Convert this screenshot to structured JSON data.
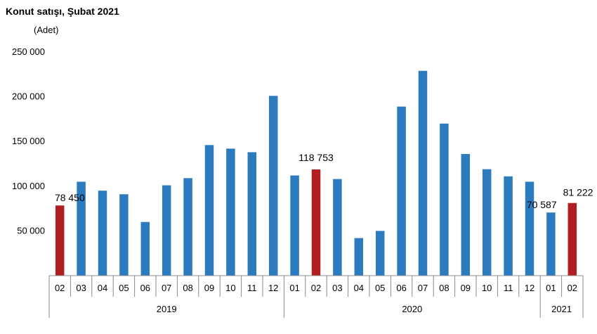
{
  "chart_data": {
    "type": "bar",
    "title": "Konut satışı, Şubat 2021",
    "ylabel": "(Adet)",
    "ylim": [
      0,
      250000
    ],
    "yticks": [
      50000,
      100000,
      150000,
      200000,
      250000
    ],
    "ytick_labels": [
      "50 000",
      "100 000",
      "150 000",
      "200 000",
      "250 000"
    ],
    "grid": false,
    "categories": [
      "02",
      "03",
      "04",
      "05",
      "06",
      "07",
      "08",
      "09",
      "10",
      "11",
      "12",
      "01",
      "02",
      "03",
      "04",
      "05",
      "06",
      "07",
      "08",
      "09",
      "10",
      "11",
      "12",
      "01",
      "02"
    ],
    "values": [
      78450,
      105000,
      95000,
      91000,
      60000,
      101000,
      109000,
      146000,
      142000,
      138000,
      201000,
      112000,
      118753,
      108000,
      42000,
      50000,
      189000,
      229000,
      170000,
      136000,
      119000,
      111000,
      105000,
      70587,
      81222
    ],
    "highlight": [
      true,
      false,
      false,
      false,
      false,
      false,
      false,
      false,
      false,
      false,
      false,
      false,
      true,
      false,
      false,
      false,
      false,
      false,
      false,
      false,
      false,
      false,
      false,
      false,
      true
    ],
    "colors": {
      "default": "#2C7BBF",
      "highlight": "#B01E22"
    },
    "year_groups": [
      {
        "label": "2019",
        "start": 0,
        "end": 10
      },
      {
        "label": "2020",
        "start": 11,
        "end": 22
      },
      {
        "label": "2021",
        "start": 23,
        "end": 24
      }
    ],
    "data_labels": [
      {
        "index": 0,
        "text": "78 450"
      },
      {
        "index": 12,
        "text": "118 753"
      },
      {
        "index": 23,
        "text": "70 587"
      },
      {
        "index": 24,
        "text": "81 222"
      }
    ]
  }
}
